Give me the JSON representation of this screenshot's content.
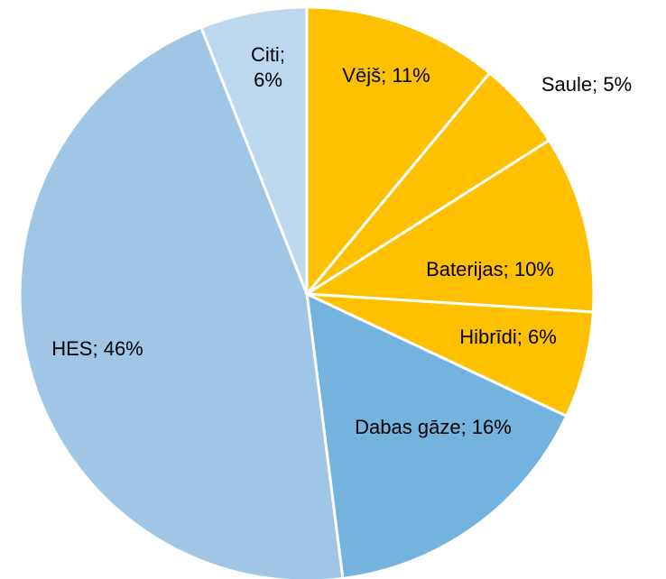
{
  "chart_data": {
    "type": "pie",
    "categories": [
      "Vējš",
      "Saule",
      "Baterijas",
      "Hibrīdi",
      "Dabas gāze",
      "HES",
      "Citi"
    ],
    "values": [
      11,
      5,
      10,
      6,
      16,
      46,
      6
    ],
    "value_labels": [
      "Vējš; 11%",
      "Saule; 5%",
      "Baterijas; 10%",
      "Hibrīdi; 6%",
      "Dabas gāze; 16%",
      "HES; 46%",
      "Citi; 6%"
    ],
    "colors": [
      "#FFC000",
      "#FFC000",
      "#FFC000",
      "#FFC000",
      "#74B3DE",
      "#A0C6E6",
      "#BDD7EE"
    ]
  }
}
